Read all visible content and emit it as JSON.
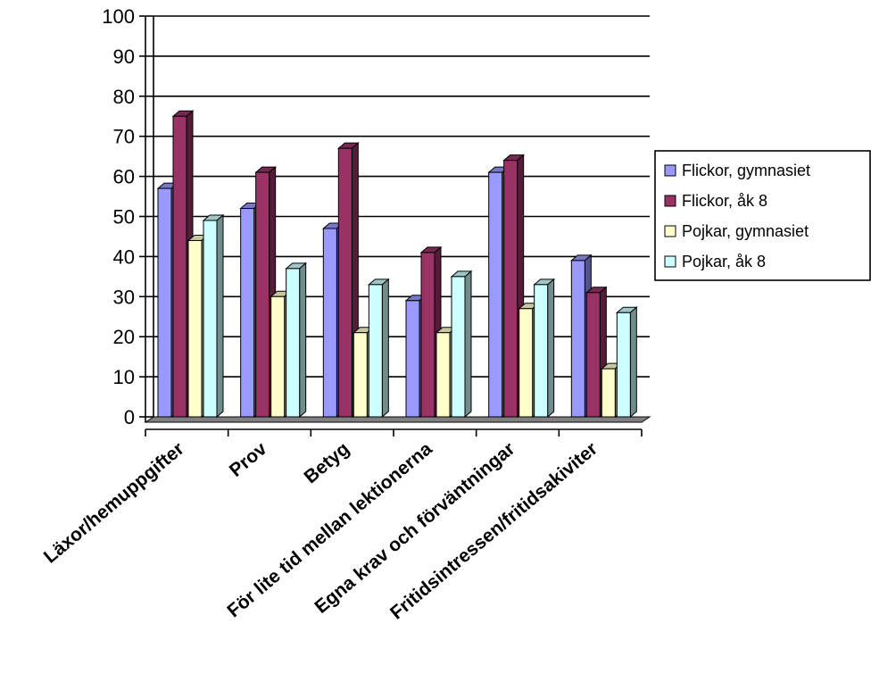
{
  "chart_data": {
    "type": "bar",
    "title": "",
    "xlabel": "",
    "ylabel": "",
    "ylim": [
      0,
      100
    ],
    "yticks": [
      0,
      10,
      20,
      30,
      40,
      50,
      60,
      70,
      80,
      90,
      100
    ],
    "grid": true,
    "legend_position": "right",
    "categories": [
      "Läxor/hemuppgifter",
      "Prov",
      "Betyg",
      "För lite tid mellan lektionerna",
      "Egna krav och förväntningar",
      "Fritidsintressen/fritidsakiviter"
    ],
    "series": [
      {
        "name": "Flickor, gymnasiet",
        "color": "#9999FF",
        "values": [
          57,
          52,
          47,
          29,
          61,
          39
        ]
      },
      {
        "name": "Flickor, åk 8",
        "color": "#993366",
        "values": [
          75,
          61,
          67,
          41,
          64,
          31
        ]
      },
      {
        "name": "Pojkar, gymnasiet",
        "color": "#FFFFCC",
        "values": [
          44,
          30,
          21,
          21,
          27,
          12
        ]
      },
      {
        "name": "Pojkar, åk 8",
        "color": "#CCFFFF",
        "values": [
          49,
          37,
          33,
          35,
          33,
          26
        ]
      }
    ]
  }
}
